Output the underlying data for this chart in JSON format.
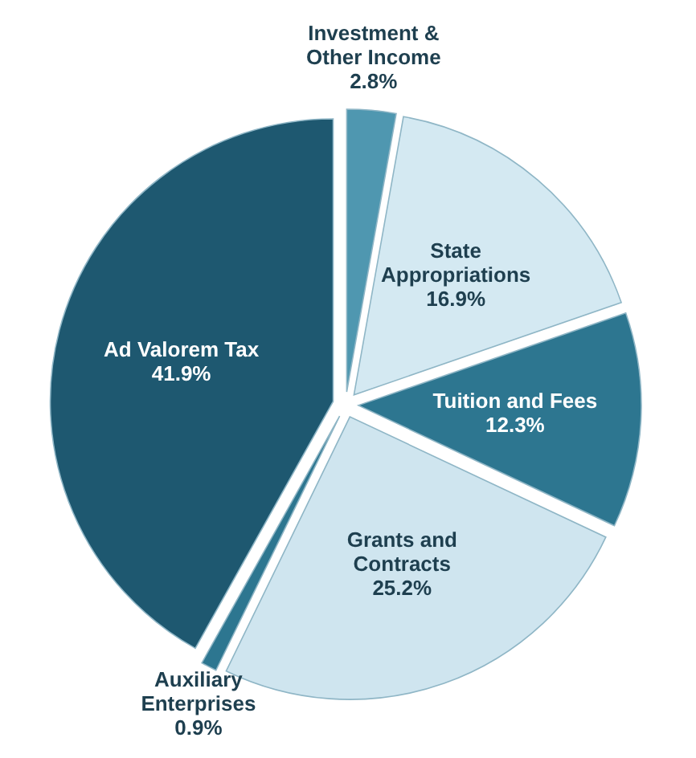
{
  "chart_data": {
    "type": "pie",
    "categories": [
      "Investment & Other Income",
      "State Appropriations",
      "Tuition and Fees",
      "Grants and Contracts",
      "Auxiliary Enterprises",
      "Ad Valorem Tax"
    ],
    "values": [
      2.8,
      16.9,
      12.3,
      25.2,
      0.9,
      41.9
    ],
    "value_labels": [
      "2.8%",
      "16.9%",
      "12.3%",
      "25.2%",
      "0.9%",
      "41.9%"
    ],
    "colors": [
      "#4f97b0",
      "#d4e9f2",
      "#2d7690",
      "#cfe5ef",
      "#2d7690",
      "#1e5870"
    ]
  }
}
